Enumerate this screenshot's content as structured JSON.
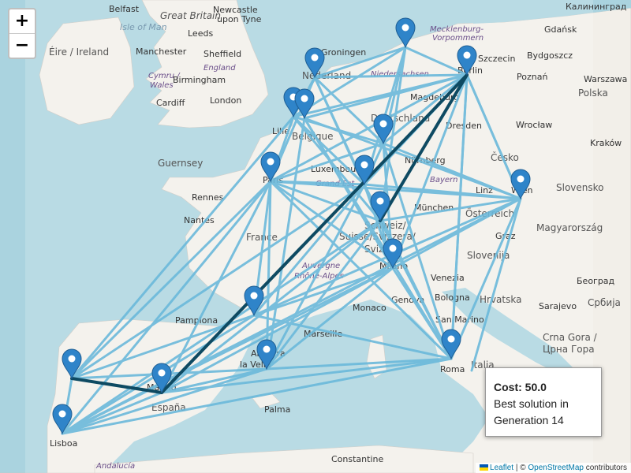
{
  "zoom": {
    "in_label": "+",
    "out_label": "−"
  },
  "info": {
    "cost": "Cost: 50.0",
    "line1": "Best solution in",
    "line2": "Generation 14"
  },
  "attribution": {
    "leaflet": "Leaflet",
    "sep": " | © ",
    "osm": "OpenStreetMap",
    "suffix": " contributors"
  },
  "colors": {
    "edge": "#6bb9db",
    "best_route": "#0e4a62",
    "marker": "#2f84c9",
    "water": "#aad3df",
    "land": "#f2efe9"
  },
  "map_labels": {
    "belfast": "Belfast",
    "great_britain": "Great Britain",
    "newcastle": "Newcastle",
    "upon_tyne": "upon Tyne",
    "isle_of_man": "Isle of Man",
    "leeds": "Leeds",
    "eire": "Éire / Ireland",
    "manchester": "Manchester",
    "sheffield": "Sheffield",
    "england": "England",
    "cymru": "Cymru /",
    "wales": "Wales",
    "birmingham": "Birmingham",
    "cardiff": "Cardiff",
    "london": "London",
    "guernsey": "Guernsey",
    "rennes": "Rennes",
    "nantes": "Nantes",
    "france": "France",
    "groningen": "Groningen",
    "niedersachsen": "Niedersachsen",
    "mecklenburg": "Mecklenburg-",
    "vorpommern": "Vorpommern",
    "szczecin": "Szczecin",
    "bydgoszcz": "Bydgoszcz",
    "poznan": "Poznań",
    "warszawa": "Warszawa",
    "polska": "Polska",
    "kaliningrad": "Калининград",
    "gdansk": "Gdańsk",
    "berlin": "Berlin",
    "magdeburg": "Magdeburg",
    "deutschland": "Deutschland",
    "dresden": "Dresden",
    "wroclaw": "Wrocław",
    "krakow": "Kraków",
    "cesko": "Česko",
    "nurnberg": "Nürnberg",
    "bayern": "Bayern",
    "lille": "Lille",
    "belgique": "Belgique",
    "luxembourg": "Luxembourg",
    "grand_est": "Grand Est",
    "munchen": "München",
    "linz": "Linz",
    "wien": "Wien",
    "slovensko": "Slovensko",
    "osterreich": "Österreich",
    "magyarorszag": "Magyarország",
    "graz": "Graz",
    "schweiz": "Schweiz/",
    "suisse": "Suisse/Svizzera/",
    "svizra": "Svizra",
    "milano": "Milano",
    "slovenija": "Slovenija",
    "venezia": "Venezia",
    "beograd": "Београд",
    "srbija": "Србија",
    "bologna": "Bologna",
    "hrvatska": "Hrvatska",
    "sarajevo": "Sarajevo",
    "san_marino": "San Marino",
    "crna_gora": "Crna Gora /",
    "crna_gora_cyr": "Црна Гора",
    "roma": "Roma",
    "italia": "Italia",
    "monaco": "Monaco",
    "genova": "Genova",
    "marseille": "Marseille",
    "pamplona": "Pamplona",
    "andorra": "Andorra",
    "la_vella": "la Vella",
    "madrid": "Madrid",
    "espana": "España",
    "palma": "Palma",
    "lisboa": "Lisboa",
    "andalucia": "Andalucía",
    "constantine": "Constantine",
    "auvergne": "Auvergne",
    "rhone_alpes": "Rhône-Alpes",
    "paris": "Paris",
    "nederland": "Nederland"
  }
}
